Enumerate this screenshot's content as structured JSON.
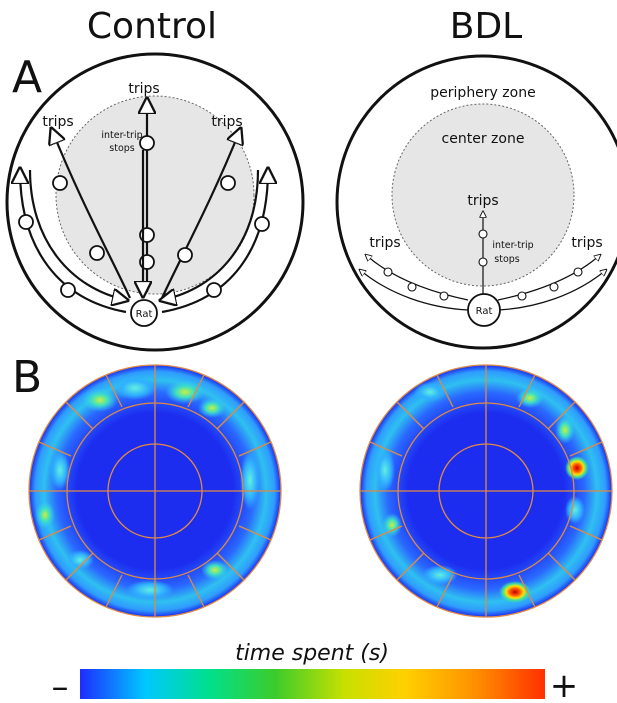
{
  "panel_a": {
    "label": "A",
    "control": {
      "title": "Control",
      "trips_labels": [
        "trips",
        "trips",
        "trips"
      ],
      "stops_label_line1": "inter-trip",
      "stops_label_line2": "stops",
      "rat_label": "Rat"
    },
    "bdl": {
      "title": "BDL",
      "periphery_label": "periphery zone",
      "center_label": "center zone",
      "trips_labels": [
        "trips",
        "trips",
        "trips"
      ],
      "stops_label_line1": "inter-trip",
      "stops_label_line2": "stops",
      "rat_label": "Rat"
    }
  },
  "panel_b": {
    "label": "B",
    "heatmaps": [
      {
        "group": "Control",
        "colormap": "jet"
      },
      {
        "group": "BDL",
        "colormap": "jet"
      }
    ],
    "grid_color": "#e08a45"
  },
  "colorbar": {
    "label": "time spent (s)",
    "min_label": "–",
    "max_label": "+",
    "stops": [
      "#2020ff",
      "#00c8ff",
      "#00e08a",
      "#3ccc2a",
      "#c8e000",
      "#ffd000",
      "#ff9000",
      "#ff3000"
    ]
  }
}
